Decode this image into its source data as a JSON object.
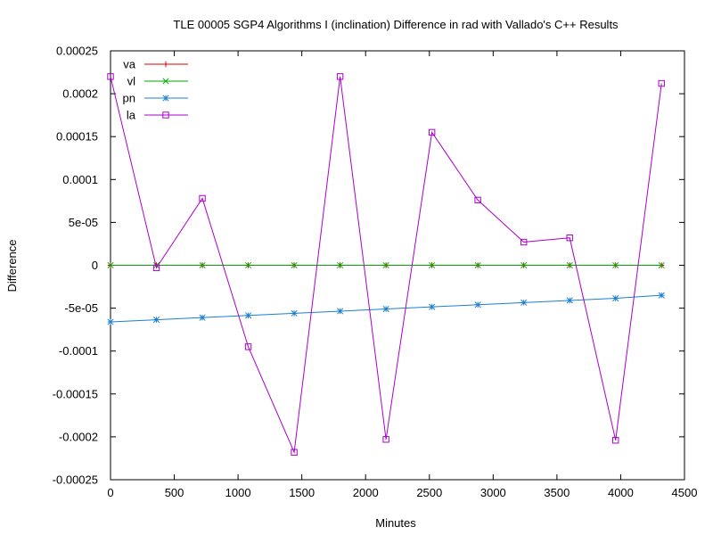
{
  "chart_data": {
    "type": "line",
    "title": "TLE 00005 SGP4 Algorithms I (inclination)  Difference in rad with Vallado's C++ Results",
    "xlabel": "Minutes",
    "ylabel": "Difference",
    "xlim": [
      0,
      4500
    ],
    "ylim": [
      -0.00025,
      0.00025
    ],
    "xticks": [
      0,
      500,
      1000,
      1500,
      2000,
      2500,
      3000,
      3500,
      4000,
      4500
    ],
    "xtick_labels": [
      "0",
      "500",
      "1000",
      "1500",
      "2000",
      "2500",
      "3000",
      "3500",
      "4000",
      "4500"
    ],
    "yticks": [
      -0.00025,
      -0.0002,
      -0.00015,
      -0.0001,
      -5e-05,
      0,
      5e-05,
      0.0001,
      0.00015,
      0.0002,
      0.00025
    ],
    "ytick_labels": [
      "-0.00025",
      "-0.0002",
      "-0.00015",
      "-0.0001",
      "-5e-05",
      "0",
      "5e-05",
      "0.0001",
      "0.00015",
      "0.0002",
      "0.00025"
    ],
    "grid": false,
    "legend_position": "top-left",
    "x": [
      0,
      360,
      720,
      1080,
      1440,
      1800,
      2160,
      2520,
      2880,
      3240,
      3600,
      3960,
      4320
    ],
    "series": [
      {
        "name": "va",
        "color": "#dd0000",
        "marker": "plus",
        "values": [
          0,
          0,
          0,
          0,
          0,
          0,
          0,
          0,
          0,
          0,
          0,
          0,
          0
        ]
      },
      {
        "name": "vl",
        "color": "#00aa00",
        "marker": "cross",
        "values": [
          0,
          0,
          0,
          0,
          0,
          0,
          0,
          0,
          0,
          0,
          0,
          0,
          0
        ]
      },
      {
        "name": "pn",
        "color": "#1b7fd0",
        "marker": "star",
        "values": [
          -6.6e-05,
          -6.35e-05,
          -6.1e-05,
          -5.85e-05,
          -5.6e-05,
          -5.35e-05,
          -5.1e-05,
          -4.85e-05,
          -4.6e-05,
          -4.35e-05,
          -4.1e-05,
          -3.85e-05,
          -3.5e-05
        ]
      },
      {
        "name": "la",
        "color": "#aa00cc",
        "marker": "square",
        "values": [
          0.00022,
          -3e-06,
          7.8e-05,
          -9.5e-05,
          -0.000218,
          0.00022,
          -0.000203,
          0.000155,
          7.6e-05,
          2.7e-05,
          3.2e-05,
          -0.000204,
          0.000212
        ]
      }
    ]
  }
}
